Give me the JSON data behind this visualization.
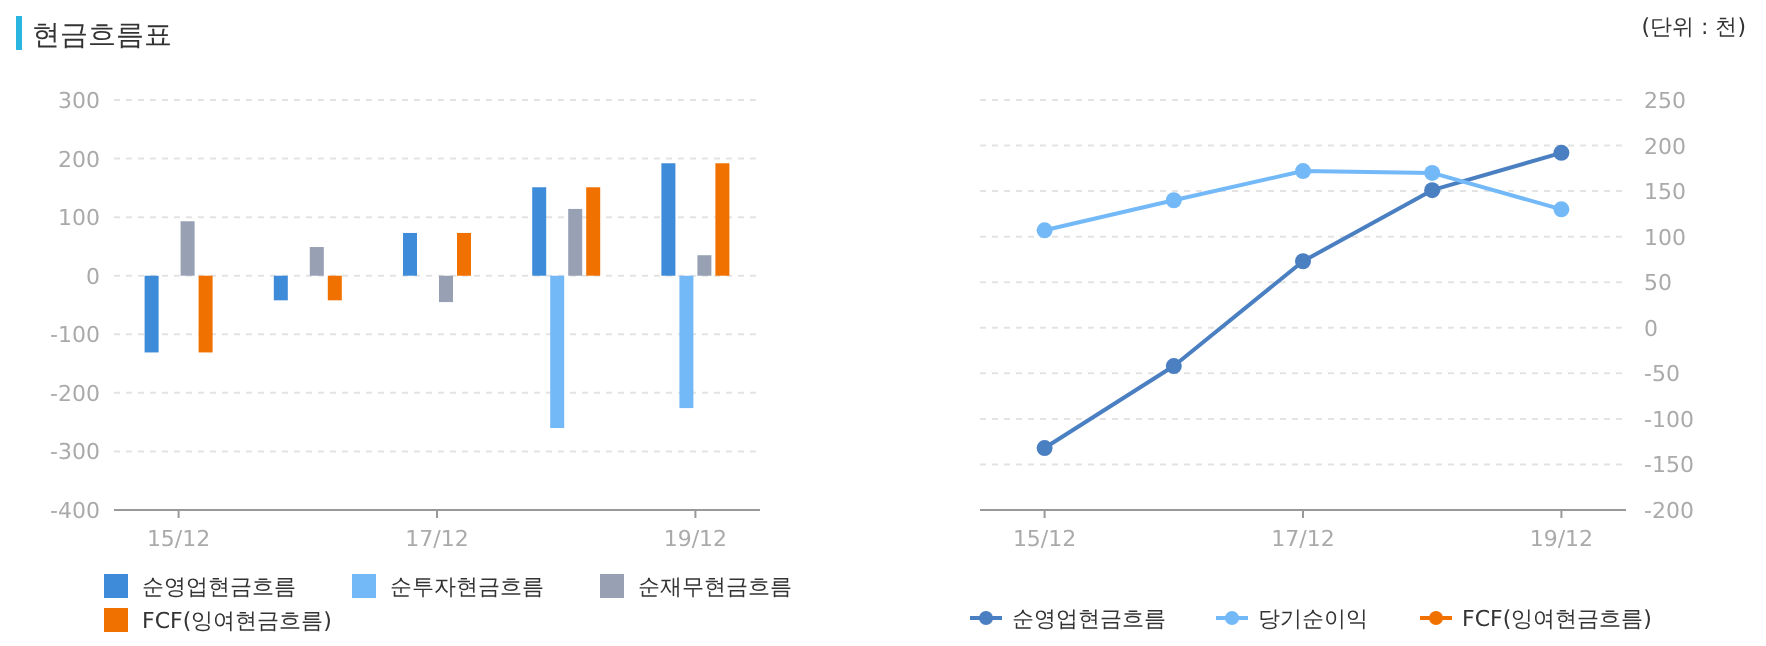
{
  "chart_data": [
    {
      "type": "bar",
      "title": "현금흐름표",
      "categories": [
        "15/12",
        null,
        "17/12",
        null,
        "19/12"
      ],
      "series": [
        {
          "name": "순영업현금흐름",
          "color": "#3d8bd9",
          "values": [
            -131,
            -42,
            73,
            151,
            192
          ]
        },
        {
          "name": "순투자현금흐름",
          "color": "#74b9f7",
          "values": [
            0,
            0,
            0,
            -260,
            -226
          ]
        },
        {
          "name": "순재무현금흐름",
          "color": "#97a1b3",
          "values": [
            93,
            49,
            -45,
            114,
            35
          ]
        },
        {
          "name": "FCF(잉여현금흐름)",
          "color": "#f07100",
          "values": [
            -131,
            -42,
            73,
            151,
            192
          ]
        }
      ],
      "ylim": [
        -400,
        300
      ],
      "yticks": [
        -400,
        -300,
        -200,
        -100,
        0,
        100,
        200,
        300
      ],
      "grid": "y",
      "legend": "bottom"
    },
    {
      "type": "line",
      "annotations": [
        "(단위 : 천)"
      ],
      "categories": [
        "15/12",
        null,
        "17/12",
        null,
        "19/12"
      ],
      "series": [
        {
          "name": "순영업현금흐름",
          "color": "#4a7fc1",
          "values": [
            -132,
            -42,
            73,
            151,
            192
          ]
        },
        {
          "name": "당기순이익",
          "color": "#74b9f7",
          "values": [
            107,
            140,
            172,
            170,
            130
          ]
        },
        {
          "name": "FCF(잉여현금흐름)",
          "color": "#f07100",
          "values": [
            null,
            null,
            null,
            null,
            null
          ]
        }
      ],
      "ylim": [
        -200,
        250
      ],
      "yticks": [
        -200,
        -150,
        -100,
        -50,
        0,
        50,
        100,
        150,
        200,
        250
      ],
      "grid": "y",
      "legend": "bottom",
      "marker": "circle"
    }
  ]
}
